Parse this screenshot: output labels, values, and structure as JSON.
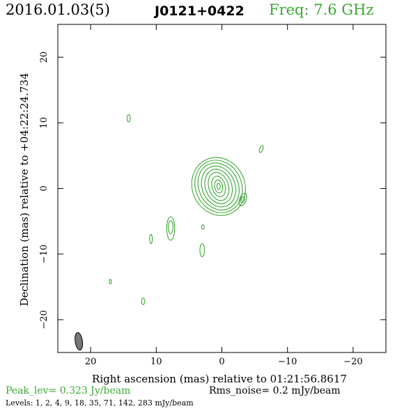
{
  "header": {
    "date": "2016.01.03(5)",
    "source": "J0121+0422",
    "freq": "Freq: 7.6 GHz"
  },
  "footer": {
    "peak": "Peak_lev=  0.323 Jy/beam",
    "rms": "Rms_noise=   0.2 mJy/beam",
    "levels": "Levels:   1,    2,    4,    9,   18,   35,   71, 142, 283 mJy/beam"
  },
  "colors": {
    "contour": "#3aa832",
    "beam": "#777777",
    "axis": "#000000"
  },
  "chart_data": {
    "type": "contour",
    "xlabel": "Right ascension (mas) relative to 01:21:56.8617",
    "ylabel": "Declination (mas) relative to +04:22:24.734",
    "xlim": [
      25,
      -25
    ],
    "ylim": [
      -25,
      25
    ],
    "x_ticks": [
      20,
      10,
      0,
      -10,
      -20
    ],
    "y_ticks": [
      20,
      10,
      0,
      -10,
      -20
    ],
    "x_tick_labels": [
      "20",
      "10",
      "0",
      "−10",
      "−20"
    ],
    "y_tick_labels": [
      "20",
      "10",
      "0",
      "−10",
      "−20"
    ],
    "levels_mJy_per_beam": [
      1,
      2,
      4,
      9,
      18,
      35,
      71,
      142,
      283
    ],
    "peak_Jy_per_beam": 0.323,
    "rms_noise_mJy_per_beam": 0.2,
    "core": {
      "x": 0.5,
      "y": 0.3,
      "rings": [
        {
          "rx": 4.0,
          "ry": 4.5,
          "angle": -25
        },
        {
          "rx": 3.5,
          "ry": 4.1,
          "angle": -25
        },
        {
          "rx": 3.0,
          "ry": 3.7,
          "angle": -25
        },
        {
          "rx": 2.5,
          "ry": 3.2,
          "angle": -22
        },
        {
          "rx": 2.0,
          "ry": 2.7,
          "angle": -20
        },
        {
          "rx": 1.5,
          "ry": 2.2,
          "angle": -18
        },
        {
          "rx": 1.0,
          "ry": 1.6,
          "angle": -15
        },
        {
          "rx": 0.6,
          "ry": 1.0,
          "angle": -10
        },
        {
          "rx": 0.25,
          "ry": 0.5,
          "angle": -5
        }
      ]
    },
    "components": [
      {
        "x": 14.2,
        "y": 10.7,
        "rx": 0.25,
        "ry": 0.55,
        "angle": 0
      },
      {
        "x": -6.0,
        "y": 6.0,
        "rx": 0.25,
        "ry": 0.55,
        "angle": 20
      },
      {
        "x": -3.2,
        "y": -1.7,
        "rx": 0.5,
        "ry": 1.0,
        "angle": 20
      },
      {
        "x": -3.2,
        "y": -1.7,
        "rx": 0.25,
        "ry": 0.5,
        "angle": 20
      },
      {
        "x": 7.8,
        "y": -6.1,
        "rx": 0.6,
        "ry": 1.8,
        "angle": 0
      },
      {
        "x": 7.8,
        "y": -5.9,
        "rx": 0.35,
        "ry": 1.0,
        "angle": 0
      },
      {
        "x": 10.8,
        "y": -7.7,
        "rx": 0.2,
        "ry": 0.7,
        "angle": 0
      },
      {
        "x": 2.9,
        "y": -5.9,
        "rx": 0.2,
        "ry": 0.35,
        "angle": 0
      },
      {
        "x": 3.0,
        "y": -9.4,
        "rx": 0.35,
        "ry": 1.0,
        "angle": 0
      },
      {
        "x": 17.0,
        "y": -14.2,
        "rx": 0.15,
        "ry": 0.35,
        "angle": 0
      },
      {
        "x": 12.0,
        "y": -17.2,
        "rx": 0.25,
        "ry": 0.5,
        "angle": 0
      }
    ],
    "beam": {
      "x": 21.8,
      "y": -23.3,
      "rx": 0.55,
      "ry": 1.35,
      "angle": -8
    }
  }
}
